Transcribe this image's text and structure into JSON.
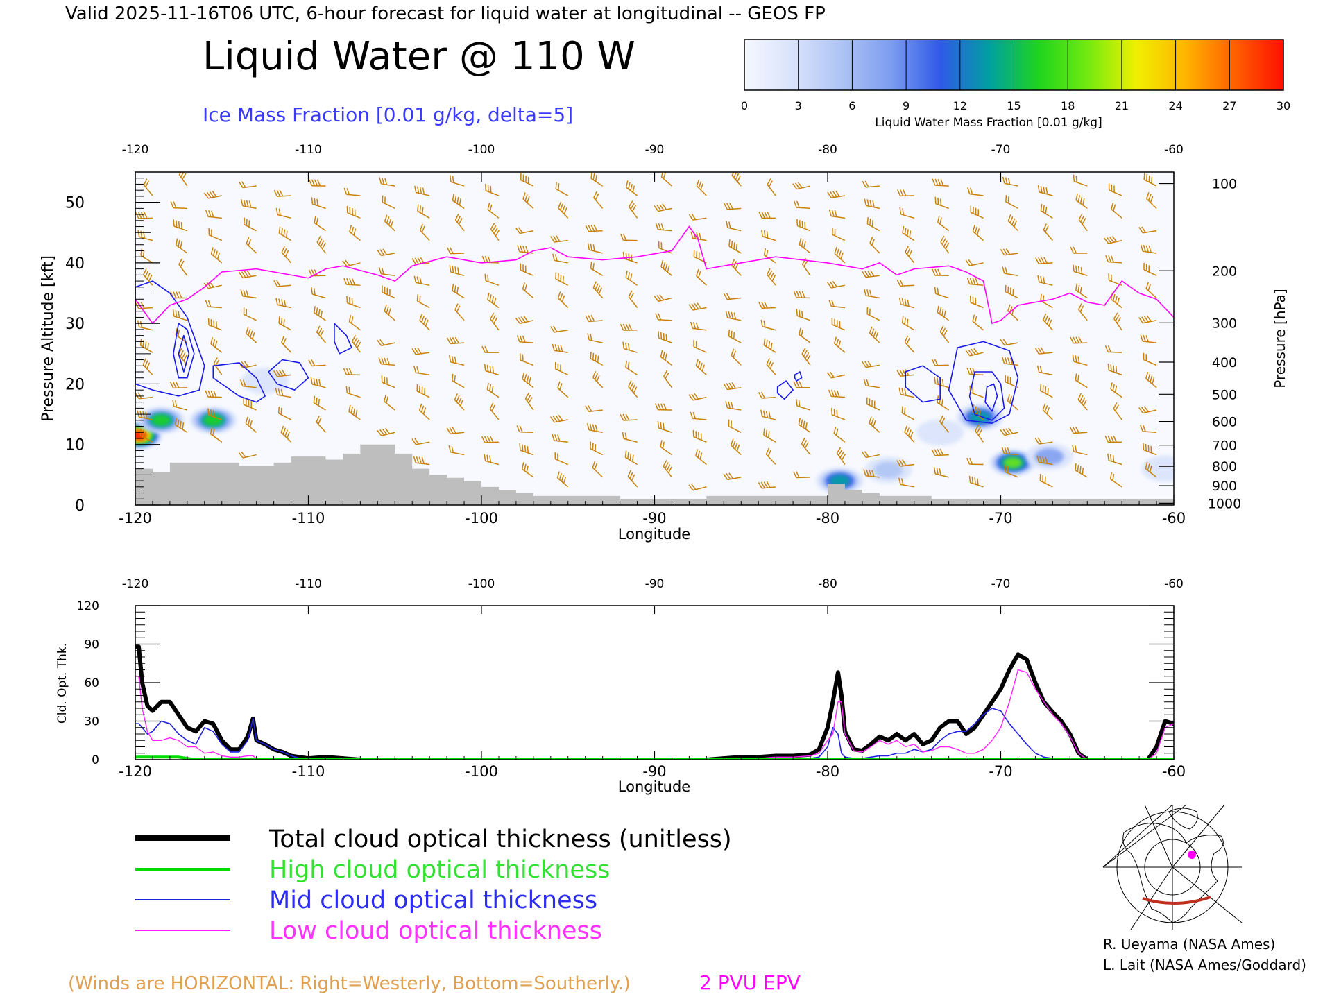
{
  "header": {
    "valid_line": "Valid 2025-11-16T06 UTC, 6-hour forecast for liquid water at longitudinal -- GEOS FP",
    "main_title": "Liquid Water @ 110 W",
    "subtitle": "Ice Mass Fraction [0.01 g/kg, delta=5]"
  },
  "colors": {
    "ice_contour": "#1a1ae6",
    "epv": "#ff00ff",
    "wind_barb": "#c8820a",
    "terrain": "#bebebe",
    "total": "#000000",
    "high": "#00dd00",
    "mid": "#2020e0",
    "low": "#ff22ff"
  },
  "colorbar": {
    "label": "Liquid Water Mass Fraction [0.01 g/kg]",
    "ticks": [
      "0",
      "3",
      "6",
      "9",
      "12",
      "15",
      "18",
      "21",
      "24",
      "27",
      "30"
    ],
    "colors": [
      "#f6f8ff",
      "#d8e2fb",
      "#adc3f5",
      "#7c9cf0",
      "#2f5ae8",
      "#00a0a0",
      "#1ed41e",
      "#70ea10",
      "#f0f000",
      "#ffb400",
      "#ff6000",
      "#ff1000"
    ]
  },
  "chart_data": [
    {
      "type": "heatmap",
      "title": "Liquid Water @ 110 W",
      "xlabel": "Longitude",
      "ylabel": "Pressure Altitude [kft]",
      "y2label": "Pressure [hPa]",
      "xlim": [
        -120,
        -60
      ],
      "ylim": [
        0,
        55
      ],
      "x_ticks": [
        "-120",
        "-110",
        "-100",
        "-90",
        "-80",
        "-70",
        "-60"
      ],
      "y_ticks": [
        "0",
        "10",
        "20",
        "30",
        "40",
        "50"
      ],
      "pressure_ticks": [
        {
          "label": "100",
          "kft": 53.1
        },
        {
          "label": "200",
          "kft": 38.7
        },
        {
          "label": "300",
          "kft": 30.1
        },
        {
          "label": "400",
          "kft": 23.6
        },
        {
          "label": "500",
          "kft": 18.3
        },
        {
          "label": "600",
          "kft": 13.8
        },
        {
          "label": "700",
          "kft": 9.9
        },
        {
          "label": "800",
          "kft": 6.4
        },
        {
          "label": "900",
          "kft": 3.2
        },
        {
          "label": "1000",
          "kft": 0.3
        }
      ],
      "liquid_water_blobs": [
        {
          "x": -119.8,
          "y": 11.5,
          "value": 30
        },
        {
          "x": -118.5,
          "y": 14,
          "value": 18
        },
        {
          "x": -115.5,
          "y": 14,
          "value": 18
        },
        {
          "x": -112.5,
          "y": 20.5,
          "value": 4
        },
        {
          "x": -79.3,
          "y": 4,
          "value": 15
        },
        {
          "x": -76.5,
          "y": 5.8,
          "value": 8
        },
        {
          "x": -71.2,
          "y": 14.5,
          "value": 15
        },
        {
          "x": -69.3,
          "y": 7,
          "value": 20
        },
        {
          "x": -67.2,
          "y": 8,
          "value": 9
        },
        {
          "x": -73.5,
          "y": 12,
          "value": 3
        },
        {
          "x": -60.5,
          "y": 6,
          "value": 5
        }
      ],
      "epv_2pvu_kft": {
        "lon": [
          -120,
          -119,
          -118,
          -117,
          -116,
          -115,
          -113,
          -111,
          -110,
          -109,
          -108,
          -106,
          -105,
          -104,
          -102,
          -100,
          -98,
          -97,
          -96,
          -95,
          -93,
          -91,
          -89,
          -88,
          -87.5,
          -87,
          -85,
          -83,
          -80,
          -78,
          -77,
          -76,
          -75,
          -73,
          -72,
          -71,
          -70.5,
          -70,
          -69,
          -67,
          -66,
          -65,
          -64,
          -63,
          -62,
          -61,
          -60
        ],
        "kft": [
          34,
          30,
          33,
          34,
          36,
          38.5,
          39,
          38,
          37.5,
          39,
          39.5,
          38,
          37,
          39.5,
          41,
          40,
          40.5,
          42,
          42.5,
          41,
          40.5,
          41,
          42,
          46,
          44,
          39,
          40,
          41,
          40,
          39,
          40,
          38,
          39,
          39.5,
          38.5,
          37,
          30,
          30.5,
          33,
          34,
          35,
          33.5,
          33,
          37,
          35,
          34,
          31
        ]
      },
      "terrain_kft": {
        "lon": [
          -120,
          -119,
          -118,
          -117,
          -116,
          -115,
          -114,
          -113,
          -112,
          -111,
          -110,
          -109,
          -108,
          -107,
          -106,
          -105,
          -104,
          -103,
          -102,
          -101,
          -100,
          -99,
          -98,
          -97,
          -96,
          -95,
          -94,
          -93,
          -92,
          -91,
          -90,
          -89,
          -88,
          -87,
          -86,
          -85,
          -84,
          -83,
          -82,
          -81,
          -80,
          -79,
          -78,
          -77,
          -76,
          -75,
          -74,
          -73,
          -72,
          -71,
          -70,
          -69,
          -68,
          -67,
          -66,
          -65,
          -64,
          -63,
          -62,
          -61,
          -60
        ],
        "kft": [
          6,
          5.5,
          7,
          7,
          7,
          7,
          6.5,
          6.5,
          7,
          8,
          8,
          7.5,
          8.5,
          10,
          10,
          8.5,
          6,
          5,
          4.5,
          4,
          3,
          2.5,
          2,
          1.5,
          1.5,
          1.5,
          1.5,
          1.5,
          1,
          1,
          1,
          1,
          1,
          1.5,
          1.5,
          1.5,
          1.5,
          1.5,
          1.5,
          1.5,
          3.5,
          2.5,
          2,
          1.5,
          1.5,
          1.5,
          1,
          1,
          1,
          1,
          1,
          1,
          1,
          1,
          1,
          1,
          1,
          1,
          1,
          1,
          1
        ]
      },
      "ice_contours": [
        {
          "lon": [
            -120,
            -119,
            -118,
            -117,
            -116,
            -116.3,
            -117.5,
            -119,
            -120
          ],
          "kft": [
            36,
            37,
            35,
            31,
            23,
            19,
            18,
            19,
            20
          ]
        },
        {
          "lon": [
            -117.5,
            -117,
            -116.6,
            -117,
            -117.5,
            -117.8,
            -117.5
          ],
          "kft": [
            30,
            29,
            25,
            21,
            21,
            25,
            30
          ]
        },
        {
          "lon": [
            -117.2,
            -116.9,
            -117.2,
            -117.5,
            -117.2
          ],
          "kft": [
            28,
            25,
            22,
            25,
            28
          ]
        },
        {
          "lon": [
            -115.5,
            -114,
            -113,
            -112.5,
            -113,
            -114,
            -115.5
          ],
          "kft": [
            23,
            23.5,
            21,
            18,
            17,
            18,
            21
          ]
        },
        {
          "lon": [
            -111.5,
            -110.5,
            -110,
            -110.8,
            -111.8,
            -112.3,
            -111.5
          ],
          "kft": [
            24,
            23.5,
            21,
            19,
            20,
            22,
            24
          ]
        },
        {
          "lon": [
            -108.5,
            -107.8,
            -107.5,
            -108.2,
            -108.5
          ],
          "kft": [
            30,
            28,
            26,
            25,
            27
          ]
        },
        {
          "lon": [
            -82.9,
            -82.4,
            -82,
            -82.5,
            -82.9
          ],
          "kft": [
            19.5,
            20.5,
            19,
            17.5,
            18.5
          ]
        },
        {
          "lon": [
            -81.9,
            -81.6,
            -81.5,
            -81.8,
            -81.9
          ],
          "kft": [
            21.5,
            22,
            21,
            20.5,
            21
          ]
        },
        {
          "lon": [
            -75.5,
            -74.5,
            -73.5,
            -73.5,
            -74.5,
            -75.5
          ],
          "kft": [
            22,
            23,
            21,
            17.5,
            17,
            19.5
          ]
        },
        {
          "lon": [
            -72.5,
            -71,
            -69.5,
            -69,
            -69.5,
            -70.5,
            -72,
            -73
          ],
          "kft": [
            26,
            27,
            25.5,
            21,
            15,
            13.5,
            14,
            19
          ]
        },
        {
          "lon": [
            -71.5,
            -70.5,
            -70,
            -69.8,
            -70.5,
            -71.5,
            -71.8
          ],
          "kft": [
            22,
            22,
            20,
            16,
            14,
            15,
            18
          ]
        },
        {
          "lon": [
            -70.8,
            -70.4,
            -70.2,
            -70.5,
            -70.9,
            -70.8
          ],
          "kft": [
            19.5,
            20,
            18,
            15.5,
            17,
            19.5
          ]
        }
      ],
      "note": "(Winds are HORIZONTAL: Right=Westerly, Bottom=Southerly.)",
      "epv_label": "2 PVU EPV"
    },
    {
      "type": "line",
      "xlabel": "Longitude",
      "ylabel": "Cld. Opt. Thk.",
      "xlim": [
        -120,
        -60
      ],
      "ylim": [
        0,
        120
      ],
      "x_ticks": [
        "-120",
        "-110",
        "-100",
        "-90",
        "-80",
        "-70",
        "-60"
      ],
      "y_ticks": [
        "0",
        "30",
        "60",
        "90",
        "120"
      ],
      "x": [
        -120,
        -119.8,
        -119.6,
        -119.3,
        -119,
        -118.5,
        -118,
        -117.5,
        -117,
        -116.5,
        -116,
        -115.5,
        -115,
        -114.5,
        -114,
        -113.5,
        -113.2,
        -113,
        -112.5,
        -112,
        -111.5,
        -111,
        -110.5,
        -110,
        -109,
        -108,
        -107,
        -105,
        -100,
        -95,
        -90,
        -87,
        -85,
        -84,
        -83,
        -82,
        -81,
        -80.5,
        -80,
        -79.7,
        -79.4,
        -79.2,
        -79,
        -78.5,
        -78,
        -77.5,
        -77,
        -76.5,
        -76,
        -75.5,
        -75,
        -74.5,
        -74,
        -73.5,
        -73,
        -72.5,
        -72,
        -71.5,
        -71,
        -70.5,
        -70,
        -69.5,
        -69,
        -68.5,
        -68,
        -67.5,
        -67,
        -66.5,
        -66,
        -65.5,
        -65,
        -64,
        -63.5,
        -63,
        -62.5,
        -62,
        -61.5,
        -61,
        -60.5,
        -60
      ],
      "series": [
        {
          "name": "Total cloud optical thickness (unitless)",
          "values": [
            88,
            88,
            60,
            42,
            38,
            45,
            45,
            35,
            25,
            22,
            30,
            28,
            15,
            8,
            8,
            18,
            32,
            15,
            12,
            8,
            6,
            3,
            2,
            1,
            2,
            1,
            0,
            0,
            0,
            0,
            0,
            0,
            2,
            2,
            3,
            3,
            4,
            8,
            25,
            45,
            68,
            50,
            22,
            8,
            7,
            12,
            18,
            15,
            20,
            15,
            20,
            12,
            15,
            25,
            30,
            30,
            20,
            25,
            35,
            45,
            55,
            70,
            82,
            78,
            60,
            45,
            37,
            30,
            20,
            5,
            0,
            0,
            0,
            0,
            0,
            0,
            0,
            10,
            30,
            28
          ]
        },
        {
          "name": "High cloud optical thickness",
          "values": [
            2,
            2,
            2,
            2,
            2,
            2,
            2,
            2,
            1,
            0,
            0,
            0,
            0,
            0,
            0,
            0,
            0,
            0,
            0,
            0,
            0,
            0,
            0,
            0,
            0,
            0,
            0,
            0,
            0,
            0,
            0,
            0,
            0,
            0,
            0,
            0,
            0,
            0,
            0,
            0,
            0,
            0,
            0,
            0,
            0,
            0,
            0,
            0,
            0,
            0,
            0,
            0,
            0,
            0,
            0,
            0,
            0,
            0,
            0,
            0,
            0,
            0,
            0,
            0,
            0,
            0,
            0,
            0,
            0,
            0,
            0,
            0,
            0,
            0,
            0,
            0,
            0,
            0,
            0,
            0
          ]
        },
        {
          "name": "Mid cloud optical thickness",
          "values": [
            28,
            28,
            25,
            20,
            22,
            30,
            28,
            20,
            15,
            12,
            25,
            22,
            12,
            6,
            6,
            15,
            32,
            15,
            12,
            8,
            6,
            3,
            1,
            0,
            0,
            0,
            0,
            0,
            0,
            0,
            0,
            0,
            0,
            0,
            0,
            0,
            1,
            2,
            10,
            25,
            20,
            5,
            2,
            1,
            1,
            2,
            3,
            3,
            5,
            5,
            8,
            6,
            8,
            15,
            20,
            22,
            22,
            28,
            35,
            40,
            38,
            28,
            20,
            12,
            5,
            2,
            1,
            1,
            0,
            0,
            0,
            0,
            0,
            0,
            0,
            0,
            0,
            0,
            0,
            0
          ]
        },
        {
          "name": "Low cloud optical thickness",
          "values": [
            65,
            65,
            40,
            22,
            15,
            15,
            17,
            15,
            10,
            10,
            5,
            6,
            3,
            2,
            2,
            3,
            3,
            1,
            1,
            1,
            0,
            0,
            0,
            0,
            0,
            0,
            0,
            0,
            0,
            0,
            0,
            0,
            1,
            1,
            2,
            2,
            3,
            5,
            15,
            20,
            45,
            45,
            20,
            7,
            6,
            10,
            15,
            12,
            15,
            10,
            12,
            6,
            7,
            10,
            10,
            8,
            5,
            5,
            8,
            15,
            25,
            45,
            70,
            68,
            55,
            45,
            35,
            28,
            18,
            5,
            0,
            0,
            0,
            0,
            0,
            0,
            0,
            5,
            25,
            28
          ]
        }
      ]
    }
  ],
  "legend": {
    "total": "Total cloud optical thickness (unitless)",
    "high": "High cloud optical thickness",
    "mid": "Mid cloud optical thickness",
    "low": "Low cloud optical thickness"
  },
  "credits": {
    "line1": "R. Ueyama (NASA Ames)",
    "line2": "L. Lait (NASA Ames/Goddard)"
  },
  "locator_map": {
    "icon": "north-polar-locator-map-icon"
  }
}
